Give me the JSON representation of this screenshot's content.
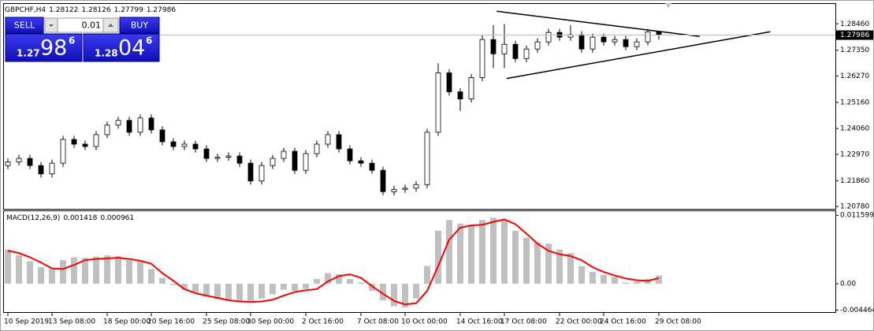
{
  "chart_data": [
    {
      "type": "candlestick",
      "symbol": "GBPCHF,H4",
      "categories": [
        "10 Sep 2019",
        null,
        null,
        null,
        "13 Sep 08:00",
        null,
        null,
        null,
        null,
        "18 Sep 00:00",
        null,
        null,
        null,
        "20 Sep 16:00",
        null,
        null,
        null,
        null,
        "25 Sep 08:00",
        null,
        null,
        null,
        "30 Sep 00:00",
        null,
        null,
        null,
        null,
        "2 Oct 16:00",
        null,
        null,
        null,
        null,
        "7 Oct 08:00",
        null,
        null,
        null,
        "10 Oct 00:00",
        null,
        null,
        null,
        null,
        "14 Oct 16:00",
        null,
        null,
        null,
        "17 Oct 08:00",
        null,
        null,
        null,
        null,
        "22 Oct 00:00",
        null,
        null,
        null,
        "24 Oct 16:00",
        null,
        null,
        null,
        null,
        "29 Oct 08:00"
      ],
      "open": [
        1.225,
        1.2265,
        1.228,
        1.225,
        1.2215,
        1.226,
        1.236,
        1.234,
        1.233,
        1.238,
        1.242,
        1.244,
        1.239,
        1.245,
        1.24,
        1.235,
        1.233,
        1.234,
        1.232,
        1.228,
        1.2285,
        1.229,
        1.226,
        1.2185,
        1.225,
        1.228,
        1.231,
        1.223,
        1.23,
        1.234,
        1.238,
        1.232,
        1.227,
        1.226,
        1.223,
        1.214,
        1.215,
        1.2155,
        1.217,
        1.239,
        1.264,
        1.256,
        1.253,
        1.262,
        1.278,
        1.272,
        1.276,
        1.27,
        1.274,
        1.277,
        1.281,
        1.279,
        1.28,
        1.274,
        1.279,
        1.277,
        1.278,
        1.275,
        1.277,
        1.28122
      ],
      "high": [
        1.228,
        1.2295,
        1.2295,
        1.2265,
        1.2275,
        1.2375,
        1.2375,
        1.2355,
        1.2395,
        1.2435,
        1.2455,
        1.2455,
        1.2465,
        1.2465,
        1.2415,
        1.2365,
        1.2355,
        1.2355,
        1.2335,
        1.23,
        1.2305,
        1.2305,
        1.2275,
        1.2265,
        1.2295,
        1.2325,
        1.2325,
        1.2315,
        1.2355,
        1.2395,
        1.2395,
        1.2335,
        1.2285,
        1.2275,
        1.2245,
        1.2165,
        1.217,
        1.2185,
        1.2405,
        1.268,
        1.2655,
        1.2575,
        1.2635,
        1.28,
        1.284,
        1.2845,
        1.2775,
        1.2755,
        1.2785,
        1.2825,
        1.2825,
        1.284,
        1.2815,
        1.2805,
        1.2805,
        1.2795,
        1.2795,
        1.2785,
        1.2825,
        1.28126
      ],
      "low": [
        1.2235,
        1.225,
        1.2235,
        1.22,
        1.22,
        1.2245,
        1.2325,
        1.2315,
        1.2315,
        1.2365,
        1.2405,
        1.2375,
        1.2375,
        1.2385,
        1.2335,
        1.2315,
        1.2315,
        1.2305,
        1.2265,
        1.2265,
        1.227,
        1.2245,
        1.217,
        1.217,
        1.2235,
        1.2265,
        1.2215,
        1.2215,
        1.2285,
        1.2325,
        1.2305,
        1.2255,
        1.2245,
        1.2215,
        1.2125,
        1.2125,
        1.2135,
        1.214,
        1.2155,
        1.2375,
        1.2545,
        1.248,
        1.2515,
        1.2605,
        1.266,
        1.266,
        1.2685,
        1.2685,
        1.2725,
        1.2755,
        1.2775,
        1.2775,
        1.2725,
        1.2725,
        1.2755,
        1.2755,
        1.2735,
        1.2735,
        1.2755,
        1.27799
      ],
      "close": [
        1.2265,
        1.228,
        1.225,
        1.2215,
        1.226,
        1.236,
        1.234,
        1.233,
        1.238,
        1.242,
        1.244,
        1.239,
        1.245,
        1.24,
        1.235,
        1.233,
        1.234,
        1.232,
        1.228,
        1.2285,
        1.229,
        1.226,
        1.2185,
        1.225,
        1.228,
        1.231,
        1.223,
        1.23,
        1.234,
        1.238,
        1.232,
        1.227,
        1.226,
        1.223,
        1.214,
        1.215,
        1.2155,
        1.217,
        1.239,
        1.264,
        1.256,
        1.253,
        1.262,
        1.278,
        1.272,
        1.276,
        1.27,
        1.274,
        1.277,
        1.281,
        1.279,
        1.28,
        1.274,
        1.279,
        1.277,
        1.278,
        1.275,
        1.277,
        1.28122,
        1.27986
      ],
      "up_color": "#ffffff",
      "down_color": "#000000",
      "ylim": [
        1.2068,
        1.2933
      ],
      "yticks": [
        {
          "value": 1.2846,
          "label": "1.28460"
        },
        {
          "value": 1.2735,
          "label": "1.27350"
        },
        {
          "value": 1.2627,
          "label": "1.26270"
        },
        {
          "value": 1.2516,
          "label": "1.25160"
        },
        {
          "value": 1.2406,
          "label": "1.24060"
        },
        {
          "value": 1.2297,
          "label": "1.22970"
        },
        {
          "value": 1.2186,
          "label": "1.21860"
        },
        {
          "value": 1.2078,
          "label": "1.20780"
        }
      ],
      "trendlines": [
        {
          "x": [
            44.3,
            62.7
          ],
          "y": [
            1.2899,
            1.2793
          ]
        },
        {
          "x": [
            45.2,
            69.1
          ],
          "y": [
            1.2616,
            1.2813
          ]
        }
      ]
    },
    {
      "type": "macd",
      "title": "MACD(12,26,9)",
      "histogram": {
        "color": "#c0c0c0",
        "values": [
          0.0058,
          0.0048,
          0.0038,
          0.0028,
          0.0025,
          0.004,
          0.0045,
          0.0044,
          0.0046,
          0.0048,
          0.0047,
          0.004,
          0.0038,
          0.0025,
          0.001,
          -0.0002,
          -0.001,
          -0.0015,
          -0.0022,
          -0.0026,
          -0.0028,
          -0.003,
          -0.0032,
          -0.0025,
          -0.0018,
          -0.001,
          -0.0012,
          -0.0009,
          0.0008,
          0.0018,
          0.0016,
          0.0008,
          0.0002,
          -0.0012,
          -0.0028,
          -0.0038,
          -0.004,
          -0.0025,
          0.003,
          0.009,
          0.0108,
          0.0102,
          0.01,
          0.0108,
          0.0112,
          0.0108,
          0.009,
          0.0078,
          0.007,
          0.0068,
          0.0058,
          0.0052,
          0.003,
          0.002,
          0.0015,
          0.0012,
          0.0002,
          0.0004,
          0.0008,
          0.001418
        ]
      },
      "signal": {
        "color": "#ff0000",
        "values": [
          0.0056,
          0.0052,
          0.0045,
          0.0036,
          0.0026,
          0.0025,
          0.0032,
          0.004,
          0.0042,
          0.0043,
          0.0044,
          0.0042,
          0.0039,
          0.0034,
          0.0018,
          0.0005,
          -0.0009,
          -0.0016,
          -0.002,
          -0.0024,
          -0.0028,
          -0.003,
          -0.0031,
          -0.003,
          -0.0027,
          -0.002,
          -0.0014,
          -0.0011,
          -0.0009,
          0.0004,
          0.0013,
          0.0016,
          0.001,
          -0.0004,
          -0.0017,
          -0.0029,
          -0.0035,
          -0.0033,
          -0.0012,
          0.003,
          0.0075,
          0.0095,
          0.0099,
          0.01,
          0.0105,
          0.0109,
          0.0101,
          0.0085,
          0.0068,
          0.0056,
          0.005,
          0.0047,
          0.004,
          0.0028,
          0.002,
          0.0014,
          0.0009,
          0.0006,
          0.0005,
          0.000961
        ]
      },
      "ylim": [
        -0.0048,
        0.0123
      ],
      "yticks": [
        0.011599,
        {
          "value": 0,
          "label": "0.00"
        },
        -0.004464
      ]
    }
  ],
  "trade_panel": {
    "sell_label": "SELL",
    "buy_label": "BUY",
    "lot": "0.01",
    "sell_price": [
      "1.27",
      "98",
      "6"
    ],
    "buy_price": [
      "1.28",
      "04",
      "6"
    ]
  }
}
